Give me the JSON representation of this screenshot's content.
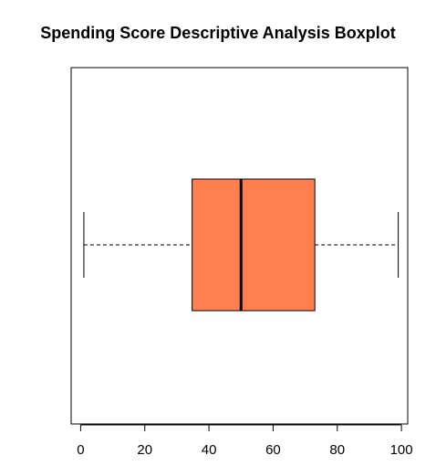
{
  "chart_data": {
    "type": "boxplot",
    "title": "Spending Score Descriptive Analysis Boxplot",
    "orientation": "horizontal",
    "xlabel": "",
    "ylabel": "",
    "xlim": [
      -2.96,
      101.96
    ],
    "x_ticks": [
      0,
      20,
      40,
      60,
      80,
      100
    ],
    "x_tick_labels": [
      "0",
      "20",
      "40",
      "60",
      "80",
      "100"
    ],
    "grid": false,
    "box": {
      "min": 1,
      "q1": 34.75,
      "median": 50,
      "q3": 73,
      "max": 99
    },
    "colors": {
      "box_fill": "#ff7f50",
      "box_stroke": "#000000",
      "median": "#000000",
      "whisker": "#000000",
      "axis": "#000000"
    }
  }
}
